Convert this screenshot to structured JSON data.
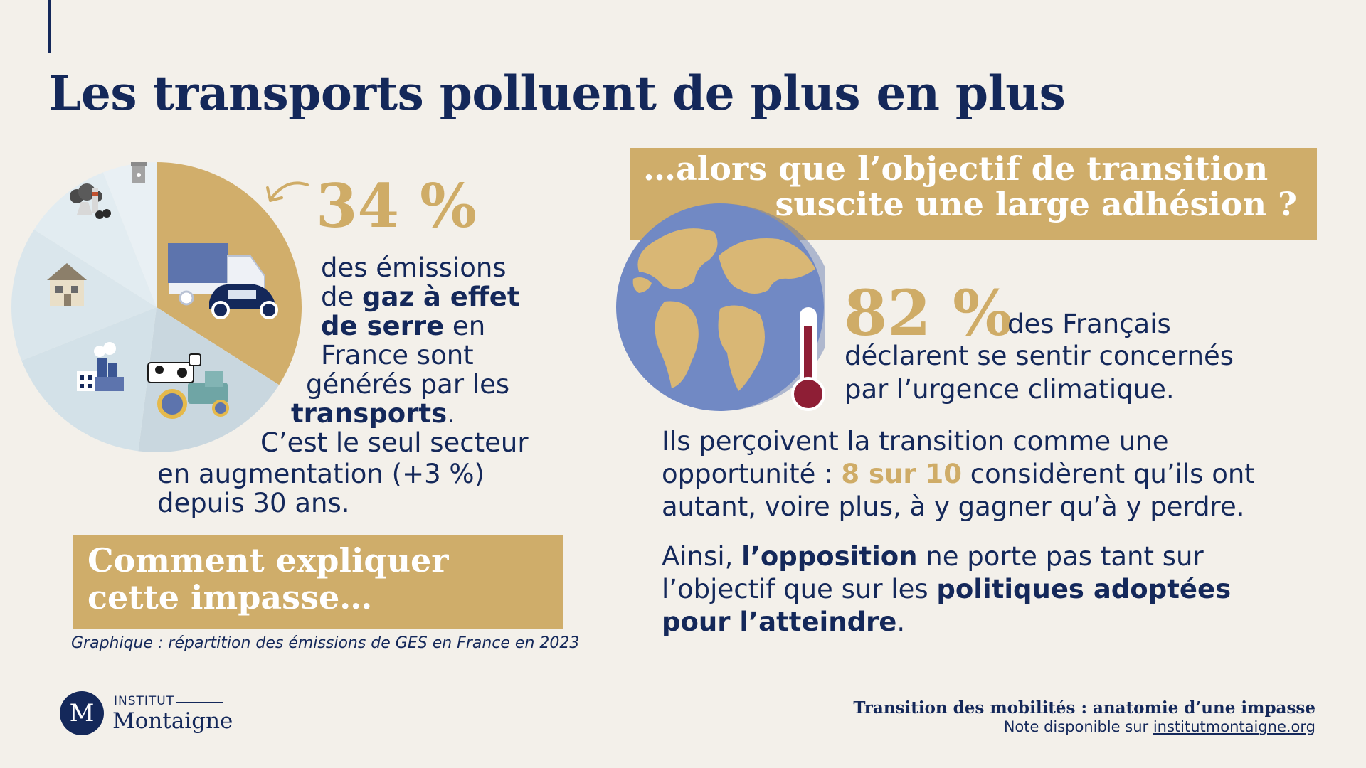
{
  "title": "Les transports polluent de plus en plus",
  "left": {
    "big_pct": "34 %",
    "lines": [
      {
        "t1": "des émissions"
      },
      {
        "t1": "de ",
        "b1": "gaz à effet"
      },
      {
        "b1": "de serre",
        "t2": " en"
      },
      {
        "t1": "France sont"
      },
      {
        "t1": "générés par les"
      },
      {
        "b1": "transports",
        "t2": "."
      },
      {
        "t1": "C’est le seul secteur"
      },
      {
        "t1": "en augmentation (+3 %)"
      },
      {
        "t1": "depuis 30 ans."
      }
    ],
    "box_lines": [
      "Comment expliquer",
      "cette impasse…"
    ],
    "caption": "Graphique : répartition des émissions de GES en France en 2023"
  },
  "right": {
    "box_lines": [
      "…alors que l’objectif de transition",
      "suscite une large adhésion ?"
    ],
    "big_pct": "82 %",
    "stat_lines": [
      "des Français",
      "déclarent se sentir concernés",
      "par l’urgence climatique."
    ],
    "para1": {
      "line1": "Ils perçoivent la transition comme une",
      "line2_pre": "opportunité : ",
      "line2_hl": "8 sur 10",
      "line2_post": " considèrent qu’ils ont",
      "line3": "autant, voire plus, à y gagner qu’à y perdre."
    },
    "para2": {
      "line1_pre": "Ainsi, ",
      "line1_b": "l’opposition",
      "line1_post": " ne porte pas tant sur",
      "line2_pre": "l’objectif que sur les ",
      "line2_b": "politiques adoptées",
      "line3_b": "pour l’atteindre",
      "line3_post": "."
    }
  },
  "footer": {
    "logo_letter": "M",
    "logo_top": "INSTITUT",
    "logo_name": "Montaigne",
    "title": "Transition des mobilités : anatomie d’une impasse",
    "note_pre": "Note disponible sur ",
    "note_link": "institutmontaigne.org"
  },
  "pie_sectors": [
    {
      "label": "transports",
      "percent": 34,
      "color": "#d1ae6b",
      "icon": "truck-car-icon"
    },
    {
      "label": "agriculture",
      "percent": 18,
      "color": "#c9d7df",
      "icon": "cow-tractor-icon"
    },
    {
      "label": "industrie",
      "percent": 17,
      "color": "#d3e1e8",
      "icon": "factory-icon"
    },
    {
      "label": "bâtiments",
      "percent": 15,
      "color": "#dae6ec",
      "icon": "house-icon"
    },
    {
      "label": "énergie",
      "percent": 10,
      "color": "#e2ecf1",
      "icon": "power-plant-icon"
    },
    {
      "label": "déchets",
      "percent": 6,
      "color": "#e9f0f4",
      "icon": "trash-bin-icon"
    }
  ],
  "colors": {
    "navy": "#14285a",
    "gold": "#cfac67",
    "background": "#f3f0ea"
  }
}
